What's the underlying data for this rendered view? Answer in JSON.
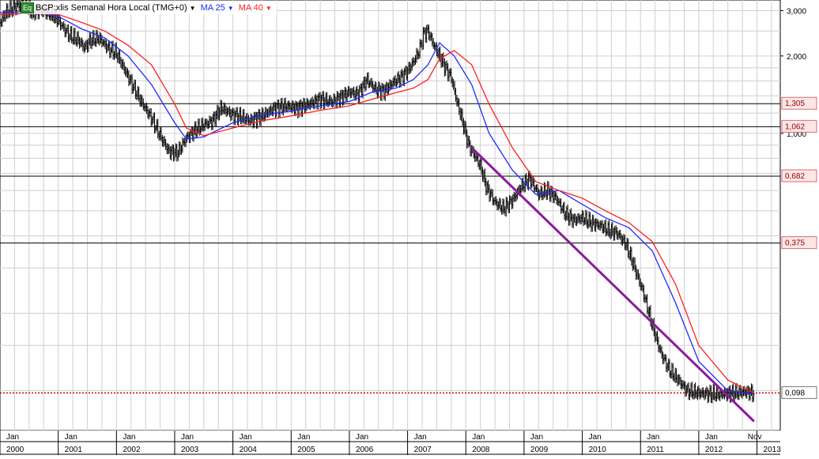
{
  "legend": {
    "badge": "Eq",
    "symbol": "BCP:xlis Semanal Hora Local (TMG+0)",
    "ma25_label": "MA 25",
    "ma40_label": "MA 40",
    "ma25_color": "#1f2bff",
    "ma40_color": "#ff2020"
  },
  "chart_data": {
    "type": "candlestick",
    "title": "BCP:xlis Semanal Hora Local (TMG+0)",
    "y_scale": "log",
    "ylim": [
      0.07,
      3.3
    ],
    "xlim": [
      2000.0,
      2013.4
    ],
    "grid": true,
    "y_ticks": [
      {
        "value": 3.0,
        "label": "3,000"
      },
      {
        "value": 2.0,
        "label": "2,000"
      },
      {
        "value": 1.0,
        "label": "1,000"
      }
    ],
    "x_year_labels": [
      "2000",
      "2001",
      "2002",
      "2003",
      "2004",
      "2005",
      "2006",
      "2007",
      "2008",
      "2009",
      "2010",
      "2011",
      "2012",
      "2013"
    ],
    "x_month_labels": [
      "Jan",
      "Jan",
      "Jan",
      "Jan",
      "Jan",
      "Jan",
      "Jan",
      "Jan",
      "Jan",
      "Jan",
      "Jan",
      "Jan",
      "Jan",
      "Nov"
    ],
    "horizontal_levels": [
      {
        "value": 1.305,
        "label": "1,305"
      },
      {
        "value": 1.062,
        "label": "1,062"
      },
      {
        "value": 0.682,
        "label": "0,682"
      },
      {
        "value": 0.375,
        "label": "0,375"
      }
    ],
    "last_price": {
      "value": 0.098,
      "label": "0,098"
    },
    "trendline": {
      "x": [
        2008.1,
        2012.95
      ],
      "y": [
        0.88,
        0.076
      ],
      "color": "#8b1a9b"
    },
    "price_path": {
      "x": [
        2000.0,
        2000.1,
        2000.25,
        2000.4,
        2000.55,
        2000.75,
        2000.9,
        2001.0,
        2001.1,
        2001.2,
        2001.35,
        2001.45,
        2001.55,
        2001.7,
        2001.85,
        2002.0,
        2002.15,
        2002.3,
        2002.45,
        2002.6,
        2002.75,
        2002.9,
        2003.05,
        2003.2,
        2003.35,
        2003.5,
        2003.65,
        2003.8,
        2004.0,
        2004.15,
        2004.3,
        2004.5,
        2004.7,
        2004.9,
        2005.1,
        2005.3,
        2005.5,
        2005.7,
        2005.85,
        2006.0,
        2006.15,
        2006.3,
        2006.45,
        2006.6,
        2006.75,
        2006.9,
        2007.0,
        2007.1,
        2007.2,
        2007.28,
        2007.35,
        2007.45,
        2007.55,
        2007.65,
        2007.75,
        2007.85,
        2007.95,
        2008.05,
        2008.15,
        2008.25,
        2008.35,
        2008.5,
        2008.65,
        2008.8,
        2008.95,
        2009.1,
        2009.25,
        2009.4,
        2009.55,
        2009.7,
        2009.85,
        2010.0,
        2010.15,
        2010.3,
        2010.45,
        2010.6,
        2010.75,
        2010.9,
        2011.05,
        2011.2,
        2011.35,
        2011.5,
        2011.65,
        2011.8,
        2012.0,
        2012.2,
        2012.4,
        2012.6,
        2012.8,
        2012.95
      ],
      "close": [
        2.7,
        2.95,
        3.1,
        3.2,
        2.95,
        3.0,
        2.9,
        2.75,
        2.55,
        2.4,
        2.3,
        2.15,
        2.3,
        2.35,
        2.15,
        2.05,
        1.75,
        1.5,
        1.3,
        1.15,
        0.98,
        0.85,
        0.84,
        0.96,
        1.03,
        1.08,
        1.12,
        1.26,
        1.18,
        1.16,
        1.12,
        1.17,
        1.25,
        1.28,
        1.25,
        1.3,
        1.36,
        1.33,
        1.38,
        1.45,
        1.42,
        1.62,
        1.48,
        1.46,
        1.58,
        1.66,
        1.75,
        1.9,
        2.1,
        2.45,
        2.5,
        2.2,
        2.0,
        1.8,
        1.65,
        1.32,
        1.1,
        0.9,
        0.82,
        0.75,
        0.62,
        0.54,
        0.51,
        0.55,
        0.62,
        0.67,
        0.58,
        0.6,
        0.56,
        0.49,
        0.46,
        0.47,
        0.45,
        0.44,
        0.42,
        0.41,
        0.37,
        0.3,
        0.24,
        0.18,
        0.14,
        0.12,
        0.11,
        0.1,
        0.098,
        0.097,
        0.097,
        0.098,
        0.099,
        0.098
      ]
    },
    "series": [
      {
        "name": "MA 25",
        "color": "#1f2bff",
        "x": [
          2000.0,
          2000.5,
          2001.0,
          2001.4,
          2001.8,
          2002.2,
          2002.6,
          2003.0,
          2003.2,
          2003.5,
          2004.0,
          2004.5,
          2005.0,
          2005.5,
          2006.0,
          2006.4,
          2006.8,
          2007.1,
          2007.35,
          2007.55,
          2007.8,
          2008.1,
          2008.4,
          2008.8,
          2009.2,
          2009.6,
          2010.0,
          2010.4,
          2010.8,
          2011.2,
          2011.6,
          2012.0,
          2012.5,
          2012.95
        ],
        "values": [
          2.95,
          2.98,
          2.85,
          2.55,
          2.35,
          2.0,
          1.55,
          1.1,
          0.95,
          0.97,
          1.1,
          1.18,
          1.22,
          1.28,
          1.33,
          1.45,
          1.5,
          1.62,
          1.85,
          2.25,
          2.0,
          1.55,
          1.0,
          0.72,
          0.58,
          0.6,
          0.53,
          0.47,
          0.43,
          0.35,
          0.22,
          0.13,
          0.1,
          0.097
        ]
      },
      {
        "name": "MA 40",
        "color": "#ff2020",
        "x": [
          2000.0,
          2000.5,
          2001.0,
          2001.4,
          2001.8,
          2002.2,
          2002.6,
          2003.0,
          2003.2,
          2003.5,
          2004.0,
          2004.5,
          2005.0,
          2005.5,
          2006.0,
          2006.4,
          2006.8,
          2007.1,
          2007.35,
          2007.55,
          2007.8,
          2008.1,
          2008.4,
          2008.8,
          2009.2,
          2009.6,
          2010.0,
          2010.4,
          2010.8,
          2011.2,
          2011.6,
          2012.0,
          2012.5,
          2012.95
        ],
        "values": [
          2.9,
          2.93,
          2.9,
          2.7,
          2.5,
          2.2,
          1.85,
          1.3,
          1.05,
          0.98,
          1.05,
          1.12,
          1.17,
          1.23,
          1.28,
          1.36,
          1.44,
          1.5,
          1.62,
          1.95,
          2.1,
          1.85,
          1.3,
          0.88,
          0.65,
          0.6,
          0.56,
          0.5,
          0.45,
          0.38,
          0.26,
          0.15,
          0.11,
          0.098
        ]
      }
    ]
  }
}
